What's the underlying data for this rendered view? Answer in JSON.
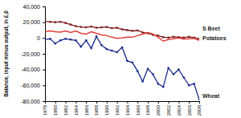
{
  "chart_data": {
    "type": "line",
    "y_label": "Balance, input minus output, in £,0",
    "x": [
      1978,
      1979,
      1980,
      1981,
      1982,
      1983,
      1984,
      1985,
      1986,
      1987,
      1988,
      1989,
      1990,
      1991,
      1992,
      1993,
      1994,
      1995,
      1996,
      1997,
      1998,
      1999,
      2000,
      2001,
      2002,
      2003,
      2004,
      2005,
      2006,
      2007,
      2008
    ],
    "series": [
      {
        "name": "S Beet",
        "color": "#7b1a1a",
        "marker": "circle",
        "values": [
          21000,
          20500,
          20000,
          20500,
          19000,
          17000,
          15000,
          14000,
          13500,
          14500,
          13000,
          13500,
          14000,
          12500,
          13000,
          11000,
          10000,
          9000,
          9500,
          7000,
          6000,
          4000,
          3000,
          1000,
          500,
          1500,
          1000,
          500,
          1500,
          500,
          -1000
        ]
      },
      {
        "name": "Potatoes",
        "color": "#e0403a",
        "marker": "none",
        "values": [
          8000,
          9000,
          8000,
          7500,
          9000,
          7000,
          9000,
          6000,
          5000,
          8000,
          6000,
          4000,
          3000,
          1000,
          -500,
          0,
          1000,
          1000,
          3000,
          5000,
          7000,
          5000,
          1000,
          -4000,
          -2000,
          -1000,
          0,
          -1500,
          -1000,
          -500,
          -3000
        ]
      },
      {
        "name": "Wheat",
        "color": "#1a2a8a",
        "marker": "circle",
        "values": [
          -2000,
          -1000,
          -7000,
          -3000,
          -1000,
          -2000,
          -3000,
          -11000,
          -3000,
          -13000,
          2000,
          -9000,
          -14000,
          -16000,
          -18000,
          -12000,
          -29000,
          -31000,
          -42000,
          -55000,
          -39000,
          -46000,
          -58000,
          -62000,
          -38000,
          -46000,
          -40000,
          -50000,
          -60000,
          -58000,
          -78000
        ]
      }
    ],
    "xlim": [
      1978,
      2008
    ],
    "xticks": [
      1978,
      1980,
      1982,
      1984,
      1986,
      1988,
      1990,
      1992,
      1994,
      1996,
      1998,
      2000,
      2002,
      2004,
      2006,
      2008
    ],
    "ylim": [
      -80000,
      40000
    ],
    "yticks": [
      {
        "value": -80000,
        "label": "-80,000"
      },
      {
        "value": -60000,
        "label": "-60,000"
      },
      {
        "value": -40000,
        "label": "-40,000"
      },
      {
        "value": -20000,
        "label": "-20,000"
      },
      0,
      {
        "value": 20000,
        "label": "20,000"
      },
      {
        "value": 40000,
        "label": "40,000"
      }
    ],
    "grid": false
  }
}
